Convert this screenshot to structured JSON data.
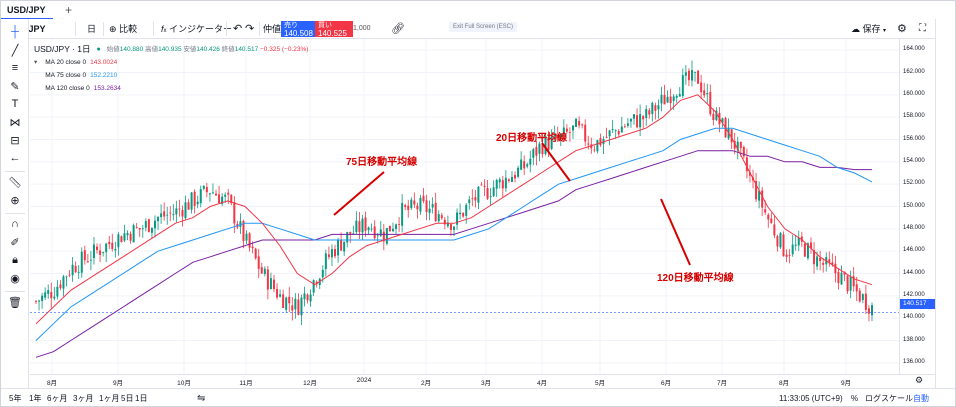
{
  "tabs": {
    "active": "USD/JPY",
    "add_label": "+"
  },
  "toolbar": {
    "timeframe": "日",
    "compare_label": "比較",
    "indicators_label": "インジケーター",
    "orders_label": "仲値",
    "sell": {
      "label": "売り",
      "price": "140.508"
    },
    "buy": {
      "label": "買い",
      "price": "140.525"
    },
    "quantity": "1,000",
    "fullscreen_note": "Exit Full Screen (ESC)",
    "save_label": "保存"
  },
  "legend": {
    "symbol": "USD/JPY · 1日",
    "ohlc": {
      "open_label": "始値",
      "open": "140.880",
      "high_label": "高値",
      "high": "140.935",
      "low_label": "安値",
      "low": "140.426",
      "close_label": "終値",
      "close": "140.517",
      "change": "−0.325 (−0.23%)"
    },
    "ma": [
      {
        "label": "MA 20 close 0",
        "value": "143.0024",
        "color": "#f23645"
      },
      {
        "label": "MA 75 close 0",
        "value": "152.2210",
        "color": "#2196f3"
      },
      {
        "label": "MA 120 close 0",
        "value": "153.2634",
        "color": "#7b1fa2"
      }
    ]
  },
  "annotations": {
    "ma20": "20日移動平均線",
    "ma75": "75日移動平均線",
    "ma120": "120日移動平均線"
  },
  "y_axis": [
    "164.000",
    "162.000",
    "160.000",
    "158.000",
    "156.000",
    "154.000",
    "152.000",
    "150.000",
    "148.000",
    "146.000",
    "144.000",
    "142.000",
    "140.000",
    "138.000",
    "136.000"
  ],
  "last_price": "140.517",
  "x_axis": [
    "8月",
    "9月",
    "10月",
    "11月",
    "12月",
    "2024",
    "2月",
    "3月",
    "4月",
    "5月",
    "6月",
    "7月",
    "8月",
    "9月"
  ],
  "bottom": {
    "ranges": [
      "5年",
      "1年",
      "6ヶ月",
      "3ヶ月",
      "1ヶ月",
      "5日",
      "1日"
    ],
    "time": "11:33:05 (UTC+9)",
    "percent": "%",
    "log": "ログスケール",
    "auto": "自動"
  },
  "colors": {
    "up": "#089981",
    "down": "#f23645",
    "ma20": "#f23645",
    "ma75": "#2196f3",
    "ma120": "#7b1fa2",
    "annotation": "#d50000",
    "accent": "#2962ff"
  },
  "chart_data": {
    "type": "candlestick",
    "symbol": "USD/JPY",
    "interval": "1D",
    "ylim": [
      135,
      165
    ],
    "months": [
      "8月",
      "9月",
      "10月",
      "11月",
      "12月",
      "2024",
      "2月",
      "3月",
      "4月",
      "5月",
      "6月",
      "7月",
      "8月",
      "9月"
    ],
    "close_path": [
      141.5,
      142.5,
      144.5,
      145.5,
      146.5,
      147.5,
      148.0,
      149.0,
      149.5,
      150.5,
      151.5,
      150.5,
      147.0,
      144.0,
      142.0,
      141.0,
      143.5,
      146.0,
      147.5,
      148.5,
      147.5,
      149.5,
      150.0,
      149.5,
      148.5,
      150.5,
      151.5,
      152.5,
      153.5,
      155.5,
      156.0,
      157.0,
      155.5,
      156.5,
      157.5,
      158.0,
      159.5,
      161.0,
      161.5,
      158.0,
      156.0,
      152.5,
      149.0,
      146.0,
      146.5,
      145.0,
      144.0,
      142.5,
      141.0
    ],
    "ma20_path": [
      139.5,
      141.0,
      142.5,
      143.5,
      144.5,
      145.5,
      146.5,
      147.5,
      148.5,
      149.0,
      150.0,
      150.5,
      150.0,
      148.5,
      146.5,
      144.0,
      143.0,
      144.0,
      145.5,
      146.5,
      147.0,
      147.5,
      148.0,
      148.5,
      148.5,
      149.0,
      150.0,
      151.0,
      152.0,
      153.0,
      154.0,
      155.0,
      155.5,
      156.0,
      156.5,
      157.0,
      158.0,
      159.5,
      160.0,
      158.5,
      156.0,
      153.0,
      150.0,
      148.0,
      147.0,
      145.5,
      144.5,
      143.5,
      143.0
    ],
    "ma75_path": [
      138.0,
      139.5,
      141.0,
      142.0,
      143.0,
      144.0,
      145.0,
      146.0,
      146.5,
      147.0,
      147.5,
      148.0,
      148.5,
      148.5,
      148.0,
      147.5,
      147.0,
      147.0,
      147.0,
      147.0,
      147.0,
      147.0,
      147.0,
      147.0,
      147.0,
      147.5,
      148.0,
      149.0,
      150.0,
      151.0,
      152.0,
      152.5,
      153.0,
      153.5,
      154.0,
      154.5,
      155.0,
      156.0,
      156.5,
      157.0,
      157.0,
      156.5,
      156.0,
      155.5,
      155.0,
      154.5,
      153.5,
      153.0,
      152.2
    ],
    "ma120_path": [
      136.5,
      137.0,
      138.0,
      139.0,
      140.0,
      141.0,
      142.0,
      143.0,
      144.0,
      145.0,
      145.5,
      146.0,
      146.5,
      147.0,
      147.0,
      147.0,
      147.0,
      147.5,
      147.5,
      147.5,
      147.5,
      147.5,
      147.5,
      147.5,
      147.5,
      148.0,
      148.5,
      149.0,
      149.5,
      150.0,
      150.5,
      151.5,
      152.0,
      152.5,
      153.0,
      153.5,
      154.0,
      154.5,
      155.0,
      155.0,
      155.0,
      154.5,
      154.5,
      154.0,
      154.0,
      153.5,
      153.5,
      153.3,
      153.3
    ]
  }
}
